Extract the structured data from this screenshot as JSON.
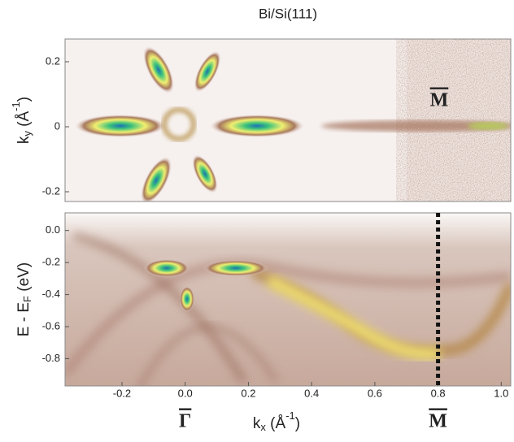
{
  "chart_data": [
    {
      "type": "heatmap",
      "title": "Bi/Si(111)",
      "ylabel": [
        "k",
        "y",
        " (Å",
        "-1",
        ")"
      ],
      "xlim": [
        -0.38,
        1.03
      ],
      "ylim": [
        -0.23,
        0.27
      ],
      "yticks": [
        -0.2,
        0,
        0.2
      ],
      "annotation": "M"
    },
    {
      "type": "heatmap",
      "ylabel": [
        "E - E",
        "F",
        " (eV)"
      ],
      "xlabel": [
        "k",
        "x",
        " (Å",
        "-1",
        ")"
      ],
      "xlim": [
        -0.38,
        1.03
      ],
      "ylim": [
        -0.97,
        0.11
      ],
      "xticks": [
        -0.2,
        {
          "value": 0,
          "label": "0.0"
        },
        0.2,
        0.4,
        0.6,
        0.8,
        {
          "value": 1,
          "label": "1.0"
        }
      ],
      "yticks": [
        {
          "value": 0,
          "label": "0.0"
        },
        -0.2,
        -0.4,
        -0.6,
        -0.8
      ],
      "marker_line": 0.8,
      "points": [
        {
          "label": "Γ",
          "x": 0
        },
        {
          "label": "M",
          "x": 0.8
        }
      ]
    }
  ]
}
